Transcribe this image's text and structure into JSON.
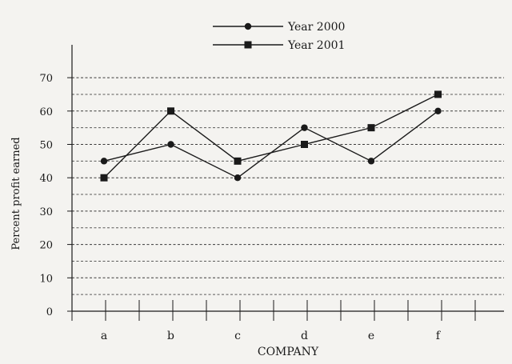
{
  "chart_data": {
    "type": "line",
    "categories": [
      "a",
      "b",
      "c",
      "d",
      "e",
      "f"
    ],
    "series": [
      {
        "name": "Year 2000",
        "marker": "circle",
        "values": [
          45,
          50,
          40,
          55,
          45,
          60
        ]
      },
      {
        "name": "Year 2001",
        "marker": "square",
        "values": [
          40,
          60,
          45,
          50,
          55,
          65
        ]
      }
    ],
    "xlabel": "COMPANY",
    "ylabel": "Percent profit earned",
    "ylim": [
      0,
      70
    ],
    "yticks": [
      0,
      10,
      20,
      30,
      40,
      50,
      60,
      70
    ],
    "grid": "horizontal dashed, every 5",
    "legend": "top-center",
    "colors": {
      "background": "#f4f3f0",
      "ink": "#1a1a1a"
    }
  }
}
